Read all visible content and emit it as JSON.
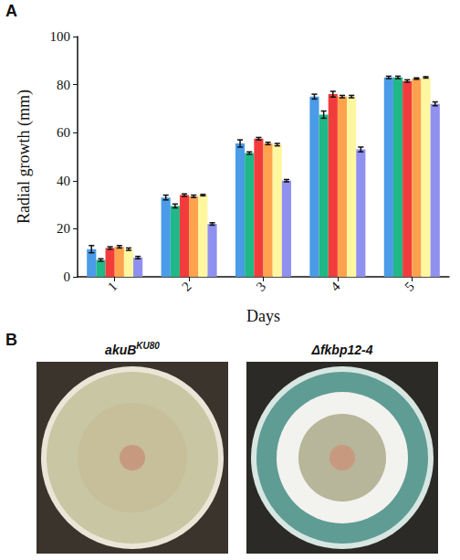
{
  "figure": {
    "panel_labels": [
      "A",
      "B"
    ]
  },
  "chart_data": {
    "type": "bar",
    "x_label": "Days",
    "y_label": "Radial growth (mm)",
    "categories": [
      "1",
      "2",
      "3",
      "4",
      "5"
    ],
    "series": [
      {
        "color": "#4a9be8",
        "values": [
          11.5,
          33,
          55.5,
          75,
          83
        ],
        "errors": [
          1.5,
          1,
          1.5,
          1,
          0.5
        ]
      },
      {
        "color": "#20b887",
        "values": [
          7,
          29.5,
          51.5,
          67.5,
          83
        ],
        "errors": [
          0.5,
          0.8,
          0.5,
          1.5,
          0.5
        ]
      },
      {
        "color": "#f23c3c",
        "values": [
          12,
          34,
          57.5,
          76,
          81.5
        ],
        "errors": [
          0.5,
          0.5,
          0.5,
          1.2,
          0.5
        ]
      },
      {
        "color": "#ffa24d",
        "values": [
          12.5,
          33.5,
          55.5,
          75,
          82.5
        ],
        "errors": [
          0.5,
          0.5,
          0.5,
          0.5,
          0.3
        ]
      },
      {
        "color": "#fff6a0",
        "values": [
          11.5,
          34,
          55,
          75,
          83
        ],
        "errors": [
          0.5,
          0.3,
          0.5,
          0.5,
          0.3
        ]
      },
      {
        "color": "#9090f0",
        "values": [
          8,
          22,
          40,
          53,
          72
        ],
        "errors": [
          0.5,
          0.5,
          0.5,
          1,
          0.8
        ]
      }
    ],
    "ylim": [
      0,
      100
    ],
    "yticks": [
      0,
      20,
      40,
      60,
      80,
      100
    ],
    "grid": false
  },
  "panel_b": {
    "plates": [
      {
        "label": "akuB",
        "label_sup": "KU80"
      },
      {
        "label": "Δfkbp12-4"
      }
    ]
  }
}
